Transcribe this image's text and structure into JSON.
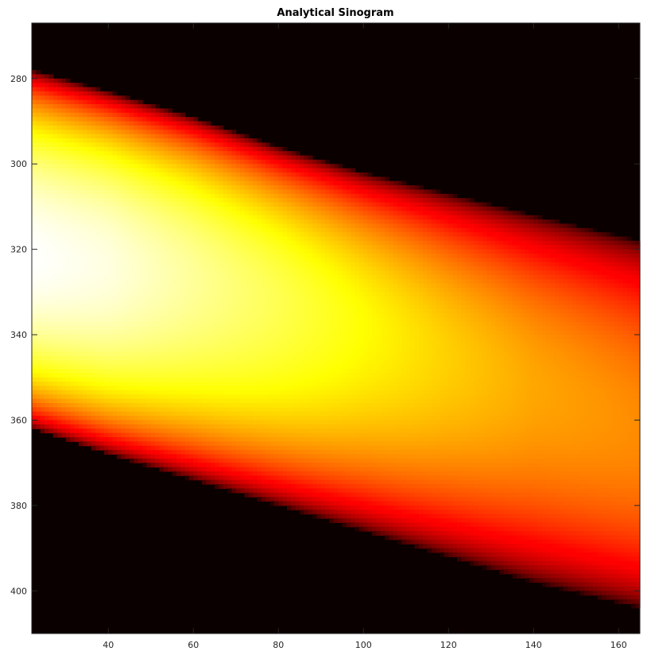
{
  "chart_data": {
    "type": "heatmap",
    "title": "Analytical Sinogram",
    "xlabel": "",
    "ylabel": "",
    "xlim": [
      22,
      165
    ],
    "ylim": [
      267,
      410
    ],
    "y_direction": "reversed",
    "colormap": "hot",
    "grid": false,
    "xticks": [
      40,
      60,
      80,
      100,
      120,
      140,
      160
    ],
    "yticks": [
      280,
      300,
      320,
      340,
      360,
      380,
      400
    ],
    "band": {
      "description": "values per angle column",
      "x": [
        22,
        40,
        60,
        80,
        100,
        120,
        140,
        165
      ],
      "center_y": [
        322,
        324,
        327,
        332,
        338,
        345,
        352,
        362
      ],
      "peak_value": [
        1.0,
        0.97,
        0.9,
        0.83,
        0.75,
        0.68,
        0.62,
        0.58
      ],
      "upper_edge_y": [
        278,
        283,
        289,
        296,
        302,
        307,
        312,
        318
      ],
      "lower_edge_y": [
        362,
        368,
        374,
        380,
        386,
        392,
        398,
        404
      ]
    }
  }
}
